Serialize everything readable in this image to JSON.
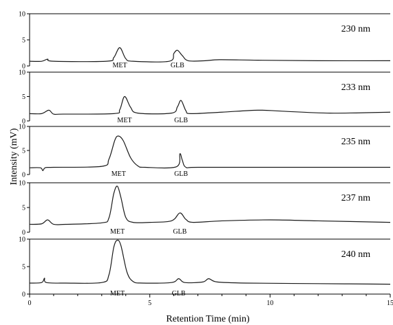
{
  "chart_data": {
    "type": "line",
    "xlabel": "Retention Time (min)",
    "ylabel": "Intensity (mV)",
    "xlim": [
      0,
      15
    ],
    "x_ticks": [
      0,
      5,
      10,
      15
    ],
    "ylim": [
      0,
      10
    ],
    "y_ticks": [
      0,
      5,
      10
    ],
    "grid": false,
    "panels": [
      {
        "name": "230 nm",
        "peaks": [
          {
            "label": "MET",
            "x": 3.75,
            "height": 3.5
          },
          {
            "label": "GLB",
            "x": 6.15,
            "height": 3.0
          }
        ],
        "points": [
          [
            0,
            0.9
          ],
          [
            0.5,
            0.9
          ],
          [
            0.75,
            1.3
          ],
          [
            1.0,
            0.9
          ],
          [
            3.2,
            0.9
          ],
          [
            3.5,
            1.6
          ],
          [
            3.75,
            3.5
          ],
          [
            4.0,
            1.4
          ],
          [
            4.3,
            0.9
          ],
          [
            5.8,
            0.9
          ],
          [
            6.0,
            2.4
          ],
          [
            6.15,
            3.0
          ],
          [
            6.35,
            2.0
          ],
          [
            6.6,
            1.0
          ],
          [
            7.3,
            1.0
          ],
          [
            7.9,
            1.2
          ],
          [
            9.5,
            1.1
          ],
          [
            12.0,
            1.0
          ],
          [
            15.0,
            1.0
          ]
        ]
      },
      {
        "name": "233 nm",
        "peaks": [
          {
            "label": "MET",
            "x": 3.95,
            "height": 5.0
          },
          {
            "label": "GLB",
            "x": 6.3,
            "height": 4.2
          }
        ],
        "points": [
          [
            0,
            1.5
          ],
          [
            0.5,
            1.5
          ],
          [
            0.8,
            2.2
          ],
          [
            1.0,
            1.4
          ],
          [
            1.4,
            1.4
          ],
          [
            3.5,
            1.5
          ],
          [
            3.75,
            2.3
          ],
          [
            3.95,
            5.0
          ],
          [
            4.2,
            2.8
          ],
          [
            4.5,
            1.6
          ],
          [
            5.9,
            1.6
          ],
          [
            6.15,
            2.9
          ],
          [
            6.3,
            4.2
          ],
          [
            6.5,
            2.1
          ],
          [
            6.7,
            1.5
          ],
          [
            8.0,
            1.8
          ],
          [
            9.5,
            2.2
          ],
          [
            10.5,
            2.0
          ],
          [
            12.5,
            1.6
          ],
          [
            15.0,
            1.8
          ]
        ]
      },
      {
        "name": "235 nm",
        "peaks": [
          {
            "label": "MET",
            "x": 3.7,
            "height": 8.0
          },
          {
            "label": "GLB",
            "x": 6.3,
            "height": 4.3
          }
        ],
        "points": [
          [
            0,
            1.4
          ],
          [
            0.45,
            1.4
          ],
          [
            0.55,
            0.8
          ],
          [
            0.65,
            1.4
          ],
          [
            1.0,
            1.5
          ],
          [
            3.0,
            1.7
          ],
          [
            3.3,
            3.2
          ],
          [
            3.55,
            7.2
          ],
          [
            3.7,
            8.0
          ],
          [
            3.9,
            7.0
          ],
          [
            4.2,
            3.5
          ],
          [
            4.5,
            1.8
          ],
          [
            4.8,
            1.5
          ],
          [
            6.1,
            1.6
          ],
          [
            6.25,
            4.3
          ],
          [
            6.35,
            3.0
          ],
          [
            6.5,
            1.5
          ],
          [
            7.0,
            1.5
          ],
          [
            10.0,
            1.5
          ],
          [
            15.0,
            1.5
          ]
        ]
      },
      {
        "name": "237 nm",
        "peaks": [
          {
            "label": "MET",
            "x": 3.65,
            "height": 9.3
          },
          {
            "label": "GLB",
            "x": 6.25,
            "height": 3.9
          }
        ],
        "points": [
          [
            0,
            1.6
          ],
          [
            0.5,
            1.7
          ],
          [
            0.75,
            2.5
          ],
          [
            1.0,
            1.6
          ],
          [
            1.5,
            1.6
          ],
          [
            3.0,
            1.9
          ],
          [
            3.3,
            2.9
          ],
          [
            3.5,
            7.8
          ],
          [
            3.65,
            9.3
          ],
          [
            3.8,
            7.0
          ],
          [
            4.0,
            3.0
          ],
          [
            4.3,
            2.0
          ],
          [
            5.0,
            2.0
          ],
          [
            5.9,
            2.3
          ],
          [
            6.25,
            3.9
          ],
          [
            6.5,
            2.6
          ],
          [
            6.8,
            2.0
          ],
          [
            8.0,
            2.3
          ],
          [
            10.0,
            2.5
          ],
          [
            12.0,
            2.3
          ],
          [
            15.0,
            2.0
          ]
        ]
      },
      {
        "name": "240 nm",
        "peaks": [
          {
            "label": "MET",
            "x": 3.65,
            "height": 9.8
          },
          {
            "label": "GLB",
            "x": 6.2,
            "height": 2.8
          }
        ],
        "points": [
          [
            0,
            2.0
          ],
          [
            0.5,
            2.1
          ],
          [
            0.62,
            2.9
          ],
          [
            0.7,
            2.1
          ],
          [
            1.5,
            2.0
          ],
          [
            3.0,
            2.1
          ],
          [
            3.3,
            3.5
          ],
          [
            3.5,
            8.5
          ],
          [
            3.65,
            9.8
          ],
          [
            3.8,
            8.8
          ],
          [
            4.05,
            4.0
          ],
          [
            4.3,
            2.3
          ],
          [
            4.7,
            2.0
          ],
          [
            5.9,
            2.1
          ],
          [
            6.2,
            2.8
          ],
          [
            6.45,
            2.1
          ],
          [
            7.2,
            2.2
          ],
          [
            7.45,
            2.8
          ],
          [
            7.8,
            2.2
          ],
          [
            9.0,
            2.0
          ],
          [
            12.0,
            1.9
          ],
          [
            15.0,
            1.8
          ]
        ]
      }
    ]
  }
}
